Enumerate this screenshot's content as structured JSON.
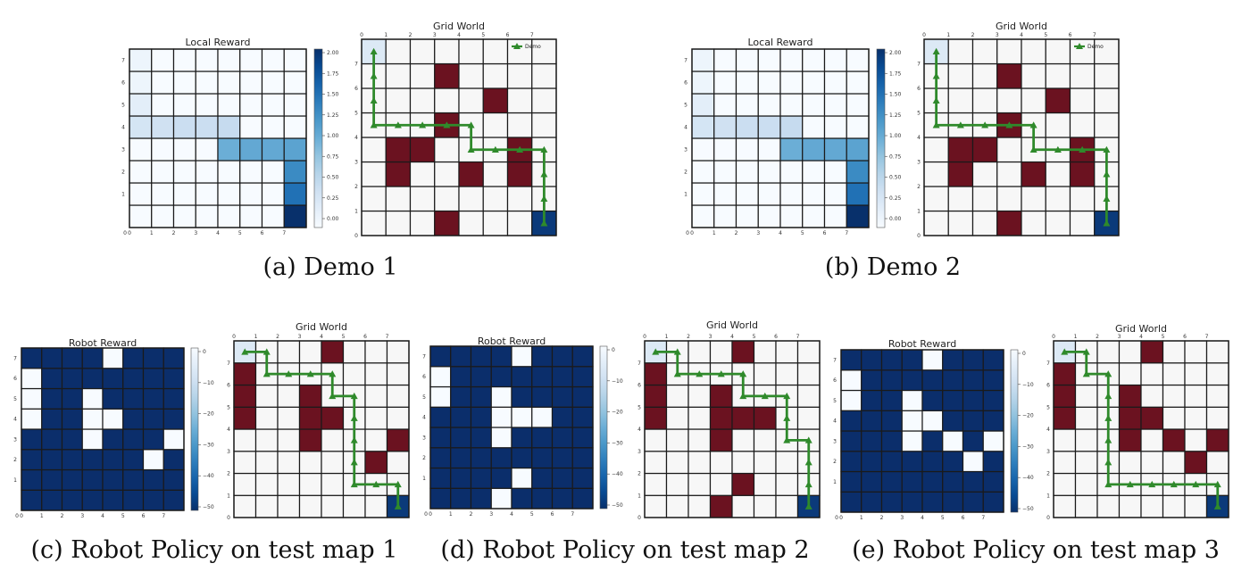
{
  "colors": {
    "obstacle": "#6b1220",
    "path": "#2f8a2b",
    "empty": "#f7f7f7",
    "gridline": "#1a1a1a",
    "reward_low": "#f7fbff",
    "reward_high": "#0b2e6b",
    "start_cell": "#dce9f5",
    "goal_cell": "#0b3a7a"
  },
  "captions": [
    "(a) Demo 1",
    "(b) Demo 2",
    "(c) Robot Policy on test map 1",
    "(d) Robot Policy on test map 2",
    "(e) Robot Policy on test map 3"
  ],
  "chart_data": [
    {
      "type": "heatmap",
      "panel": "a",
      "title": "Local Reward",
      "xticks": [
        "0",
        "1",
        "2",
        "3",
        "4",
        "5",
        "6",
        "7"
      ],
      "yticks": [
        "0",
        "1",
        "2",
        "3",
        "4",
        "5",
        "6",
        "7"
      ],
      "colorbar_ticks": [
        "0.00",
        "0.25",
        "0.50",
        "0.75",
        "1.00",
        "1.25",
        "1.50",
        "1.75",
        "2.00"
      ],
      "vmin": 0,
      "vmax": 2,
      "cells": [
        {
          "x": 0,
          "y": 7,
          "value": 0.1
        },
        {
          "x": 0,
          "y": 6,
          "value": 0.1
        },
        {
          "x": 0,
          "y": 5,
          "value": 0.2
        },
        {
          "x": 0,
          "y": 4,
          "value": 0.35
        },
        {
          "x": 1,
          "y": 4,
          "value": 0.4
        },
        {
          "x": 2,
          "y": 4,
          "value": 0.45
        },
        {
          "x": 3,
          "y": 4,
          "value": 0.45
        },
        {
          "x": 4,
          "y": 4,
          "value": 0.5
        },
        {
          "x": 4,
          "y": 3,
          "value": 1.0
        },
        {
          "x": 5,
          "y": 3,
          "value": 1.05
        },
        {
          "x": 6,
          "y": 3,
          "value": 1.05
        },
        {
          "x": 7,
          "y": 3,
          "value": 1.1
        },
        {
          "x": 7,
          "y": 2,
          "value": 1.3
        },
        {
          "x": 7,
          "y": 1,
          "value": 1.5
        },
        {
          "x": 7,
          "y": 0,
          "value": 2.0
        }
      ]
    },
    {
      "type": "heatmap",
      "panel": "a",
      "title": "Grid World",
      "xticks": [
        "0",
        "1",
        "2",
        "3",
        "4",
        "5",
        "6",
        "7"
      ],
      "yticks": [
        "0",
        "1",
        "2",
        "3",
        "4",
        "5",
        "6",
        "7"
      ],
      "legend": {
        "label": "Demo",
        "position": "top-right"
      },
      "start": [
        0,
        7
      ],
      "goal": [
        7,
        0
      ],
      "obstacles": [
        [
          3,
          6
        ],
        [
          5,
          5
        ],
        [
          3,
          4
        ],
        [
          1,
          3
        ],
        [
          2,
          3
        ],
        [
          6,
          3
        ],
        [
          1,
          2
        ],
        [
          4,
          2
        ],
        [
          6,
          2
        ],
        [
          3,
          0
        ]
      ],
      "path": [
        [
          0.5,
          7.5
        ],
        [
          0.5,
          6.5
        ],
        [
          0.5,
          5.5
        ],
        [
          0.5,
          4.5
        ],
        [
          1.5,
          4.5
        ],
        [
          2.5,
          4.5
        ],
        [
          3.5,
          4.5
        ],
        [
          4.5,
          4.5
        ],
        [
          4.5,
          3.5
        ],
        [
          5.5,
          3.5
        ],
        [
          6.5,
          3.5
        ],
        [
          7.5,
          3.5
        ],
        [
          7.5,
          2.5
        ],
        [
          7.5,
          1.5
        ],
        [
          7.5,
          0.5
        ]
      ]
    },
    {
      "type": "heatmap",
      "panel": "b",
      "title": "Local Reward",
      "xticks": [
        "0",
        "1",
        "2",
        "3",
        "4",
        "5",
        "6",
        "7"
      ],
      "yticks": [
        "0",
        "1",
        "2",
        "3",
        "4",
        "5",
        "6",
        "7"
      ],
      "colorbar_ticks": [
        "0.00",
        "0.25",
        "0.50",
        "0.75",
        "1.00",
        "1.25",
        "1.50",
        "1.75",
        "2.00"
      ],
      "vmin": 0,
      "vmax": 2,
      "cells": [
        {
          "x": 0,
          "y": 7,
          "value": 0.1
        },
        {
          "x": 0,
          "y": 6,
          "value": 0.1
        },
        {
          "x": 0,
          "y": 5,
          "value": 0.2
        },
        {
          "x": 0,
          "y": 4,
          "value": 0.35
        },
        {
          "x": 1,
          "y": 4,
          "value": 0.4
        },
        {
          "x": 2,
          "y": 4,
          "value": 0.45
        },
        {
          "x": 3,
          "y": 4,
          "value": 0.45
        },
        {
          "x": 4,
          "y": 4,
          "value": 0.5
        },
        {
          "x": 4,
          "y": 3,
          "value": 1.0
        },
        {
          "x": 5,
          "y": 3,
          "value": 1.05
        },
        {
          "x": 6,
          "y": 3,
          "value": 1.05
        },
        {
          "x": 7,
          "y": 3,
          "value": 1.1
        },
        {
          "x": 7,
          "y": 2,
          "value": 1.3
        },
        {
          "x": 7,
          "y": 1,
          "value": 1.5
        },
        {
          "x": 7,
          "y": 0,
          "value": 2.0
        }
      ]
    },
    {
      "type": "heatmap",
      "panel": "b",
      "title": "Grid World",
      "xticks": [
        "0",
        "1",
        "2",
        "3",
        "4",
        "5",
        "6",
        "7"
      ],
      "yticks": [
        "0",
        "1",
        "2",
        "3",
        "4",
        "5",
        "6",
        "7"
      ],
      "legend": {
        "label": "Demo",
        "position": "top-right"
      },
      "start": [
        0,
        7
      ],
      "goal": [
        7,
        0
      ],
      "obstacles": [
        [
          3,
          6
        ],
        [
          5,
          5
        ],
        [
          3,
          4
        ],
        [
          1,
          3
        ],
        [
          2,
          3
        ],
        [
          6,
          3
        ],
        [
          1,
          2
        ],
        [
          4,
          2
        ],
        [
          6,
          2
        ],
        [
          3,
          0
        ]
      ],
      "path": [
        [
          0.5,
          7.5
        ],
        [
          0.5,
          6.5
        ],
        [
          0.5,
          5.5
        ],
        [
          0.5,
          4.5
        ],
        [
          1.5,
          4.5
        ],
        [
          2.5,
          4.5
        ],
        [
          3.5,
          4.5
        ],
        [
          4.5,
          4.5
        ],
        [
          4.5,
          3.5
        ],
        [
          5.5,
          3.5
        ],
        [
          6.5,
          3.5
        ],
        [
          7.5,
          3.5
        ],
        [
          7.5,
          2.5
        ],
        [
          7.5,
          1.5
        ],
        [
          7.5,
          0.5
        ]
      ]
    },
    {
      "type": "heatmap",
      "panel": "c",
      "title": "Robot Reward",
      "xticks": [
        "0",
        "1",
        "2",
        "3",
        "4",
        "5",
        "6",
        "7"
      ],
      "yticks": [
        "0",
        "1",
        "2",
        "3",
        "4",
        "5",
        "6",
        "7"
      ],
      "colorbar_ticks": [
        "0",
        "−10",
        "−20",
        "−30",
        "−40",
        "−50"
      ],
      "vmin": -50,
      "vmax": 0,
      "white_cells": [
        [
          4,
          7
        ],
        [
          0,
          6
        ],
        [
          0,
          5
        ],
        [
          3,
          5
        ],
        [
          3,
          4
        ],
        [
          4,
          4
        ],
        [
          0,
          4
        ],
        [
          7,
          3
        ],
        [
          3,
          3
        ],
        [
          6,
          2
        ]
      ]
    },
    {
      "type": "heatmap",
      "panel": "c",
      "title": "Grid World",
      "xticks": [
        "0",
        "1",
        "2",
        "3",
        "4",
        "5",
        "6",
        "7"
      ],
      "yticks": [
        "0",
        "1",
        "2",
        "3",
        "4",
        "5",
        "6",
        "7"
      ],
      "start": [
        0,
        7
      ],
      "goal": [
        7,
        0
      ],
      "obstacles": [
        [
          4,
          7
        ],
        [
          0,
          6
        ],
        [
          0,
          5
        ],
        [
          3,
          5
        ],
        [
          0,
          4
        ],
        [
          3,
          4
        ],
        [
          4,
          4
        ],
        [
          3,
          3
        ],
        [
          7,
          3
        ],
        [
          6,
          2
        ]
      ],
      "path": [
        [
          0.5,
          7.5
        ],
        [
          1.5,
          7.5
        ],
        [
          1.5,
          6.5
        ],
        [
          2.5,
          6.5
        ],
        [
          3.5,
          6.5
        ],
        [
          4.5,
          6.5
        ],
        [
          4.5,
          5.5
        ],
        [
          5.5,
          5.5
        ],
        [
          5.5,
          4.5
        ],
        [
          5.5,
          3.5
        ],
        [
          5.5,
          2.5
        ],
        [
          5.5,
          1.5
        ],
        [
          6.5,
          1.5
        ],
        [
          7.5,
          1.5
        ],
        [
          7.5,
          0.5
        ]
      ]
    },
    {
      "type": "heatmap",
      "panel": "d",
      "title": "Robot Reward",
      "xticks": [
        "0",
        "1",
        "2",
        "3",
        "4",
        "5",
        "6",
        "7"
      ],
      "yticks": [
        "0",
        "1",
        "2",
        "3",
        "4",
        "5",
        "6",
        "7"
      ],
      "colorbar_ticks": [
        "0",
        "−10",
        "−20",
        "−30",
        "−40",
        "−50"
      ],
      "vmin": -50,
      "vmax": 0,
      "white_cells": [
        [
          4,
          7
        ],
        [
          0,
          6
        ],
        [
          0,
          5
        ],
        [
          3,
          5
        ],
        [
          3,
          4
        ],
        [
          4,
          4
        ],
        [
          5,
          4
        ],
        [
          3,
          3
        ],
        [
          4,
          1
        ],
        [
          3,
          0
        ]
      ]
    },
    {
      "type": "heatmap",
      "panel": "d",
      "title": "Grid World",
      "xticks": [
        "0",
        "1",
        "2",
        "3",
        "4",
        "5",
        "6",
        "7"
      ],
      "yticks": [
        "0",
        "1",
        "2",
        "3",
        "4",
        "5",
        "6",
        "7"
      ],
      "start": [
        0,
        7
      ],
      "goal": [
        7,
        0
      ],
      "obstacles": [
        [
          4,
          7
        ],
        [
          0,
          6
        ],
        [
          0,
          5
        ],
        [
          3,
          5
        ],
        [
          0,
          4
        ],
        [
          3,
          4
        ],
        [
          4,
          4
        ],
        [
          5,
          4
        ],
        [
          3,
          3
        ],
        [
          4,
          1
        ],
        [
          3,
          0
        ]
      ],
      "path": [
        [
          0.5,
          7.5
        ],
        [
          1.5,
          7.5
        ],
        [
          1.5,
          6.5
        ],
        [
          2.5,
          6.5
        ],
        [
          3.5,
          6.5
        ],
        [
          4.5,
          6.5
        ],
        [
          4.5,
          5.5
        ],
        [
          5.5,
          5.5
        ],
        [
          6.5,
          5.5
        ],
        [
          6.5,
          4.5
        ],
        [
          6.5,
          3.5
        ],
        [
          7.5,
          3.5
        ],
        [
          7.5,
          2.5
        ],
        [
          7.5,
          1.5
        ],
        [
          7.5,
          0.5
        ]
      ]
    },
    {
      "type": "heatmap",
      "panel": "e",
      "title": "Robot Reward",
      "xticks": [
        "0",
        "1",
        "2",
        "3",
        "4",
        "5",
        "6",
        "7"
      ],
      "yticks": [
        "0",
        "1",
        "2",
        "3",
        "4",
        "5",
        "6",
        "7"
      ],
      "colorbar_ticks": [
        "0",
        "−10",
        "−20",
        "−30",
        "−40",
        "−50"
      ],
      "vmin": -50,
      "vmax": 0,
      "white_cells": [
        [
          4,
          7
        ],
        [
          0,
          6
        ],
        [
          0,
          5
        ],
        [
          3,
          5
        ],
        [
          3,
          4
        ],
        [
          4,
          4
        ],
        [
          3,
          3
        ],
        [
          5,
          3
        ],
        [
          7,
          3
        ],
        [
          6,
          2
        ]
      ]
    },
    {
      "type": "heatmap",
      "panel": "e",
      "title": "Grid World",
      "xticks": [
        "0",
        "1",
        "2",
        "3",
        "4",
        "5",
        "6",
        "7"
      ],
      "yticks": [
        "0",
        "1",
        "2",
        "3",
        "4",
        "5",
        "6",
        "7"
      ],
      "start": [
        0,
        7
      ],
      "goal": [
        7,
        0
      ],
      "obstacles": [
        [
          4,
          7
        ],
        [
          0,
          6
        ],
        [
          0,
          5
        ],
        [
          3,
          5
        ],
        [
          0,
          4
        ],
        [
          3,
          4
        ],
        [
          4,
          4
        ],
        [
          3,
          3
        ],
        [
          5,
          3
        ],
        [
          7,
          3
        ],
        [
          6,
          2
        ]
      ],
      "path": [
        [
          0.5,
          7.5
        ],
        [
          1.5,
          7.5
        ],
        [
          1.5,
          6.5
        ],
        [
          2.5,
          6.5
        ],
        [
          2.5,
          5.5
        ],
        [
          2.5,
          4.5
        ],
        [
          2.5,
          3.5
        ],
        [
          2.5,
          2.5
        ],
        [
          2.5,
          1.5
        ],
        [
          3.5,
          1.5
        ],
        [
          4.5,
          1.5
        ],
        [
          5.5,
          1.5
        ],
        [
          6.5,
          1.5
        ],
        [
          7.5,
          1.5
        ],
        [
          7.5,
          0.5
        ]
      ]
    }
  ]
}
